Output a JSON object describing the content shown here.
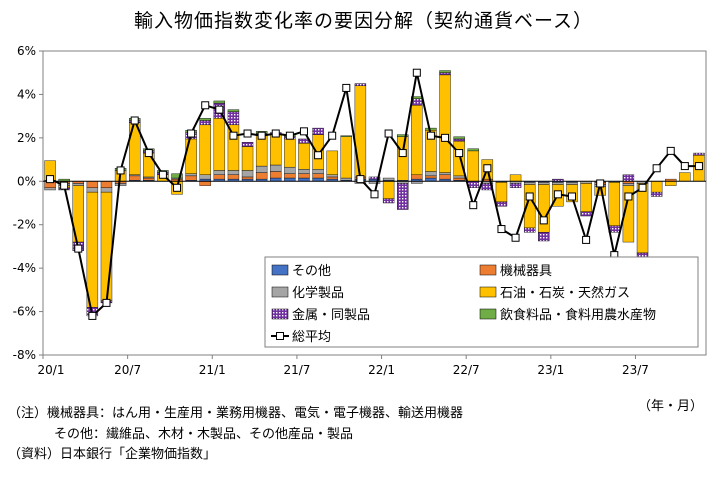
{
  "title": "輸入物価指数変化率の要因分解（契約通貨ベース）",
  "notes": {
    "line1": "（注）機械器具：はん用・生産用・業務用機器、電気・電子機器、輸送用機器",
    "line2": "その他：繊維品、木材・木製品、その他産品・製品",
    "line3": "（資料）日本銀行「企業物価指数」",
    "unit": "（年・月）"
  },
  "chart_data": {
    "type": "bar",
    "stacked": true,
    "overlay_line": "総平均",
    "title": "輸入物価指数変化率の要因分解（契約通貨ベース）",
    "xlabel": "（年・月）",
    "ylabel": "",
    "ylim": [
      -8,
      6
    ],
    "y_ticks": [
      "-8%",
      "-6%",
      "-4%",
      "-2%",
      "0%",
      "2%",
      "4%",
      "6%"
    ],
    "y_tick_values": [
      -8,
      -6,
      -4,
      -2,
      0,
      2,
      4,
      6
    ],
    "x_tick_labels": [
      {
        "index": 0,
        "label": "20/1"
      },
      {
        "index": 6,
        "label": "20/7"
      },
      {
        "index": 12,
        "label": "21/1"
      },
      {
        "index": 18,
        "label": "21/7"
      },
      {
        "index": 24,
        "label": "22/1"
      },
      {
        "index": 30,
        "label": "22/7"
      },
      {
        "index": 36,
        "label": "23/1"
      },
      {
        "index": 42,
        "label": "23/7"
      }
    ],
    "grid": false,
    "legend_placement": "bottom-right",
    "categories": [
      "2020-01",
      "2020-02",
      "2020-03",
      "2020-04",
      "2020-05",
      "2020-06",
      "2020-07",
      "2020-08",
      "2020-09",
      "2020-10",
      "2020-11",
      "2020-12",
      "2021-01",
      "2021-02",
      "2021-03",
      "2021-04",
      "2021-05",
      "2021-06",
      "2021-07",
      "2021-08",
      "2021-09",
      "2021-10",
      "2021-11",
      "2021-12",
      "2022-01",
      "2022-02",
      "2022-03",
      "2022-04",
      "2022-05",
      "2022-06",
      "2022-07",
      "2022-08",
      "2022-09",
      "2022-10",
      "2022-11",
      "2022-12",
      "2023-01",
      "2023-02",
      "2023-03",
      "2023-04",
      "2023-05",
      "2023-06",
      "2023-07",
      "2023-08",
      "2023-09",
      "2023-10",
      "2023-11"
    ],
    "series": [
      {
        "name": "その他",
        "color": "#4472C4",
        "values": [
          0.05,
          0,
          0,
          0,
          0,
          0,
          0.05,
          0.05,
          0,
          0,
          0.05,
          0.1,
          0.1,
          0.1,
          0.1,
          0.1,
          0.15,
          0.15,
          0.15,
          0.15,
          0.1,
          0.05,
          0.1,
          0.1,
          0.05,
          0.05,
          0.1,
          0.15,
          0.1,
          0.05,
          0,
          0,
          -0.05,
          0,
          -0.05,
          -0.05,
          -0.05,
          -0.05,
          0,
          -0.05,
          -0.05,
          0,
          0,
          0,
          0,
          0,
          0
        ]
      },
      {
        "name": "機械器具",
        "color": "#ED7D31",
        "values": [
          -0.3,
          -0.1,
          -0.1,
          -0.3,
          -0.3,
          -0.1,
          0.2,
          0.1,
          0,
          0.1,
          0.2,
          -0.2,
          0.2,
          0.2,
          0.1,
          0.3,
          0.3,
          0.2,
          0.2,
          0.2,
          0.1,
          0,
          0.1,
          0,
          0,
          0,
          0.2,
          0.1,
          0.2,
          0.1,
          0,
          0.1,
          0,
          0,
          0,
          0,
          0,
          0,
          0,
          -0.1,
          0,
          -0.1,
          0,
          0,
          0.1,
          0,
          0
        ]
      },
      {
        "name": "化学製品",
        "color": "#A5A5A5",
        "values": [
          -0.1,
          -0.1,
          -0.1,
          -0.2,
          -0.2,
          -0.1,
          0.05,
          0.05,
          0,
          0.05,
          0.1,
          0.2,
          0.2,
          0.2,
          0.3,
          0.3,
          0.3,
          0.3,
          0.2,
          0.2,
          0.1,
          0.1,
          -0.1,
          -0.1,
          0.1,
          -0.1,
          -0.1,
          0.2,
          0.1,
          0.1,
          0,
          -0.1,
          0,
          -0.1,
          -0.1,
          -0.1,
          -0.1,
          -0.1,
          -0.1,
          -0.1,
          0,
          -0.1,
          -0.1,
          0,
          0,
          0,
          0
        ]
      },
      {
        "name": "石油・石炭・天然ガス",
        "color": "#FFC000",
        "values": [
          0.9,
          -0.1,
          -2.6,
          -5.3,
          -5,
          0.5,
          2.4,
          1.1,
          0.3,
          -0.6,
          1.6,
          2.3,
          2.4,
          2.1,
          1.1,
          1.4,
          1.4,
          1.3,
          1.2,
          1.6,
          1.1,
          1.9,
          4.2,
          0,
          -0.8,
          2,
          3.2,
          1.9,
          4.5,
          1.6,
          1.4,
          0.9,
          -0.9,
          0.3,
          -2,
          -2.2,
          -1,
          -0.8,
          -1.3,
          -0.4,
          -2,
          -2.6,
          -3.2,
          -0.5,
          -0.2,
          0.4,
          1.2
        ]
      },
      {
        "name": "金属・同製品",
        "color": "#7030A0",
        "values": [
          0,
          -0.1,
          -0.4,
          -0.4,
          -0.1,
          0,
          0.1,
          0.1,
          0.1,
          0,
          0.3,
          0.2,
          0.7,
          0.6,
          0.2,
          0.1,
          0.1,
          0.1,
          0.2,
          0.3,
          0,
          0,
          0.1,
          0.1,
          -0.2,
          -1.2,
          0.3,
          0,
          0.1,
          0.1,
          -0.3,
          -0.3,
          -0.2,
          -0.2,
          -0.2,
          -0.4,
          0.1,
          0,
          -0.2,
          0,
          -0.3,
          0.3,
          -0.4,
          -0.2,
          0,
          0,
          0.1
        ]
      },
      {
        "name": "飲食料品・食料用農水産物",
        "color": "#70AD47",
        "values": [
          0,
          0.1,
          0,
          0,
          0,
          0.1,
          0.1,
          0.1,
          0.1,
          0.2,
          0.1,
          0.1,
          0.1,
          0.1,
          0,
          0.1,
          0,
          0.1,
          0,
          0,
          0,
          0.05,
          0,
          0,
          0,
          0.1,
          0.1,
          0.1,
          0.1,
          0.1,
          0.1,
          0,
          0,
          0,
          0,
          0,
          0,
          0,
          0,
          0,
          0,
          0,
          0,
          0,
          0,
          0,
          0
        ]
      }
    ],
    "total": {
      "name": "総平均",
      "values": [
        0.1,
        -0.2,
        -3.1,
        -6.2,
        -5.6,
        0.5,
        2.8,
        1.3,
        0.3,
        -0.3,
        2.2,
        3.5,
        3.3,
        2.1,
        2.2,
        2.1,
        2.2,
        2.1,
        2.3,
        1.2,
        2.1,
        4.3,
        0.1,
        -0.6,
        2.2,
        1.3,
        5,
        2.1,
        2,
        1.3,
        -1.1,
        0.6,
        -2.2,
        -2.6,
        -0.7,
        -1.8,
        -0.6,
        -0.7,
        -2.7,
        -0.1,
        -3.4,
        -0.7,
        -0.3,
        0.6,
        1.4,
        0.7,
        0.7
      ]
    }
  }
}
